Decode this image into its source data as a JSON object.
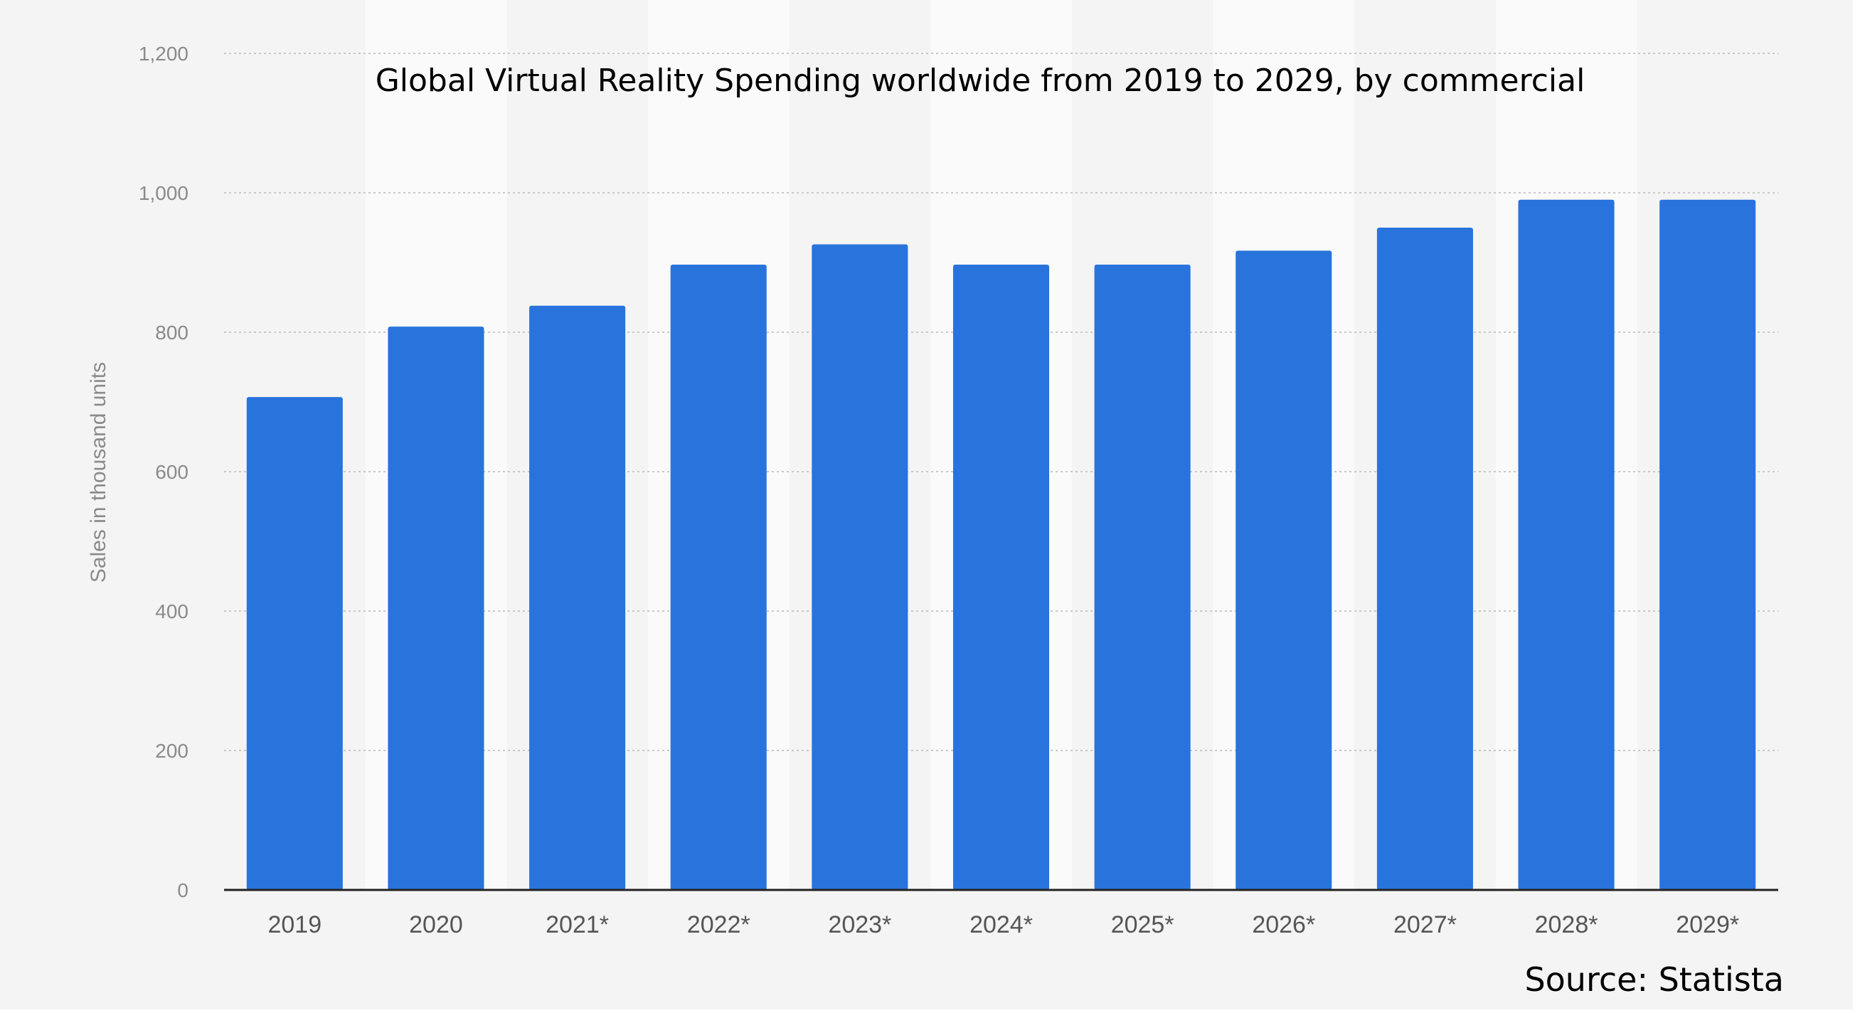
{
  "chart_data": {
    "type": "bar",
    "title": "Global Virtual Reality Spending worldwide from 2019 to 2029, by commercial",
    "xlabel": "",
    "ylabel": "Sales in thousand units",
    "categories": [
      "2019",
      "2020",
      "2021*",
      "2022*",
      "2023*",
      "2024*",
      "2025*",
      "2026*",
      "2027*",
      "2028*",
      "2029*"
    ],
    "values": [
      707,
      808,
      838,
      897,
      926,
      897,
      897,
      917,
      950,
      990,
      990
    ],
    "ylim": [
      0,
      1200
    ],
    "yticks": [
      0,
      200,
      400,
      600,
      800,
      1000,
      1200
    ],
    "ytick_labels": [
      "0",
      "200",
      "400",
      "600",
      "800",
      "1,000",
      "1,200"
    ],
    "grid": true,
    "bar_color": "#2874DC",
    "background_color": "#F4F4F4",
    "band_color": "#FAFAFA",
    "source": "Source: Statista"
  }
}
